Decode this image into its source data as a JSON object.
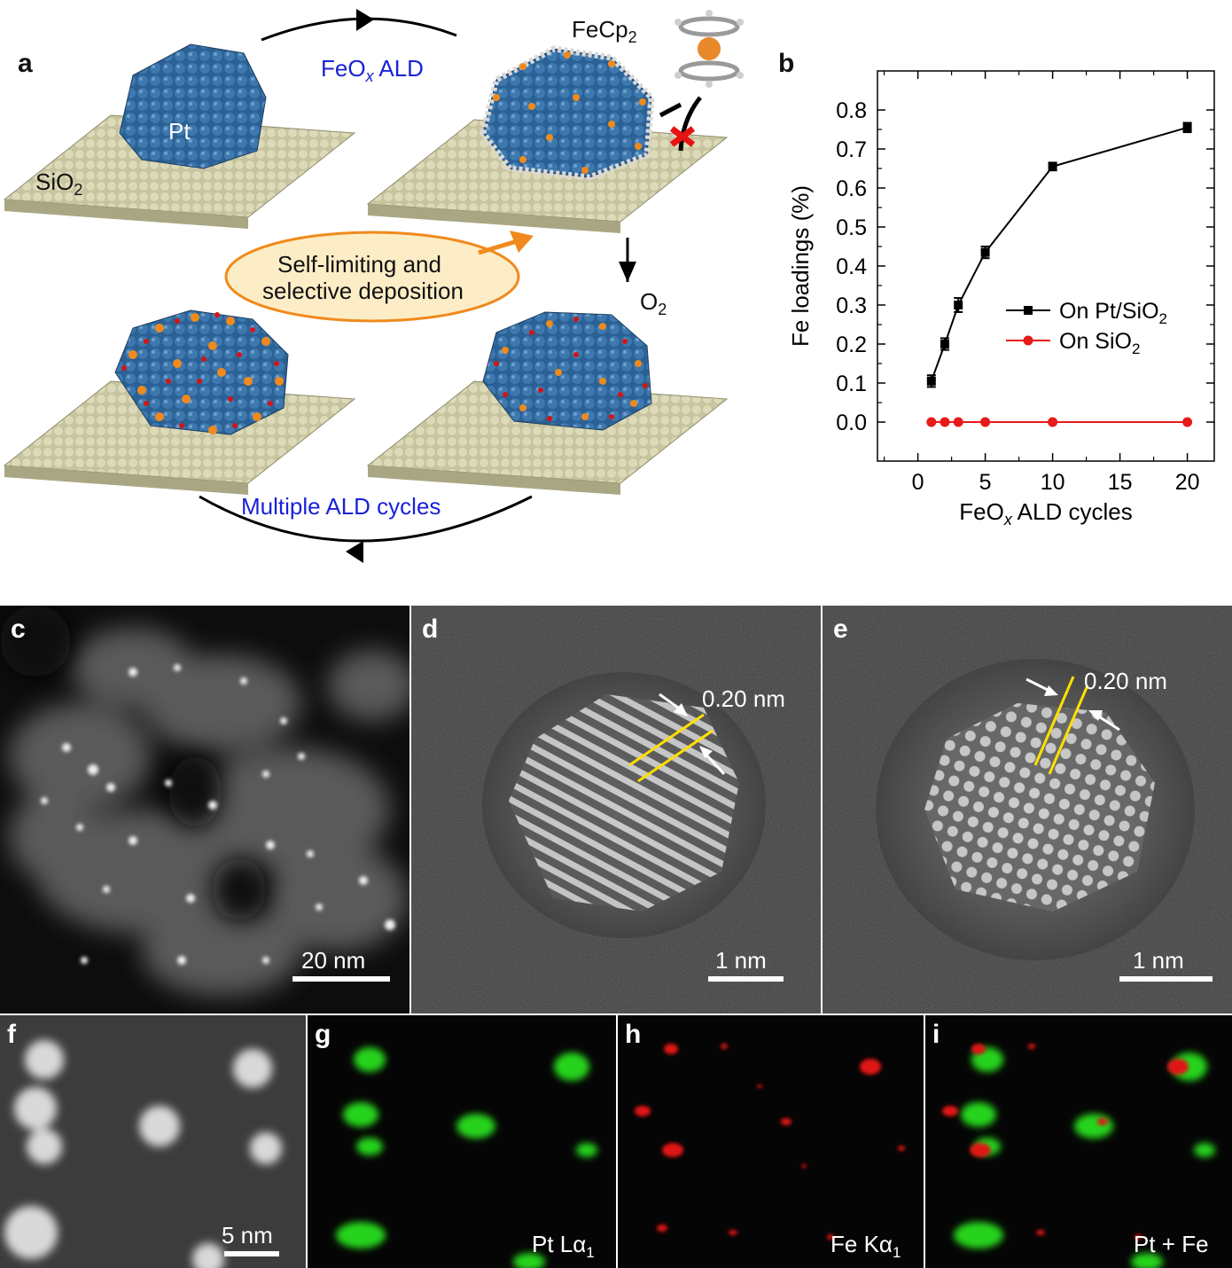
{
  "panel_a": {
    "label": "a",
    "arrow_top_label": "FeO",
    "arrow_top_sub": "x",
    "arrow_top_suffix": " ALD",
    "precursor_label": "FeCp",
    "precursor_sub": "2",
    "pt_label": "Pt",
    "support_label": "SiO",
    "support_sub": "2",
    "bubble_line1": "Self-limiting and",
    "bubble_line2": "selective deposition",
    "oxidant_label": "O",
    "oxidant_sub": "2",
    "arrow_bottom_label": "Multiple ALD cycles"
  },
  "panel_b": {
    "label": "b"
  },
  "chart_data": {
    "type": "line",
    "xlabel_main": "FeO",
    "xlabel_sub": "x",
    "xlabel_rest": " ALD cycles",
    "ylabel": "Fe loadings (%)",
    "xlim": [
      -3,
      22
    ],
    "ylim": [
      -0.1,
      0.9
    ],
    "xticks": [
      0,
      5,
      10,
      15,
      20
    ],
    "yticks": [
      0.0,
      0.1,
      0.2,
      0.3,
      0.4,
      0.5,
      0.6,
      0.7,
      0.8
    ],
    "ytick_labels": [
      "0.0",
      "0.1",
      "0.2",
      "0.3",
      "0.4",
      "0.5",
      "0.6",
      "0.7",
      "0.8"
    ],
    "legend_position": "center-right",
    "series": [
      {
        "name": "On Pt/SiO",
        "name_sub": "2",
        "color": "#000000",
        "marker": "square",
        "x": [
          1,
          2,
          3,
          5,
          10,
          20
        ],
        "y": [
          0.105,
          0.2,
          0.3,
          0.435,
          0.655,
          0.755
        ],
        "err": [
          0.015,
          0.015,
          0.018,
          0.015,
          0.01,
          0.012
        ]
      },
      {
        "name": "On SiO",
        "name_sub": "2",
        "color": "#e81a1a",
        "marker": "circle",
        "x": [
          1,
          2,
          3,
          5,
          10,
          20
        ],
        "y": [
          0,
          0,
          0,
          0,
          0,
          0
        ]
      }
    ]
  },
  "panel_c": {
    "label": "c",
    "scalebar": "20 nm"
  },
  "panel_d": {
    "label": "d",
    "spacing": "0.20 nm",
    "scalebar": "1 nm"
  },
  "panel_e": {
    "label": "e",
    "spacing": "0.20 nm",
    "scalebar": "1 nm"
  },
  "panel_f": {
    "label": "f",
    "scalebar": "5 nm"
  },
  "panel_g": {
    "label": "g",
    "map_main": "Pt L",
    "map_greek": "α",
    "map_sub": "1"
  },
  "panel_h": {
    "label": "h",
    "map_main": "Fe K",
    "map_greek": "α",
    "map_sub": "1"
  },
  "panel_i": {
    "label": "i",
    "map_main": "Pt + Fe"
  }
}
